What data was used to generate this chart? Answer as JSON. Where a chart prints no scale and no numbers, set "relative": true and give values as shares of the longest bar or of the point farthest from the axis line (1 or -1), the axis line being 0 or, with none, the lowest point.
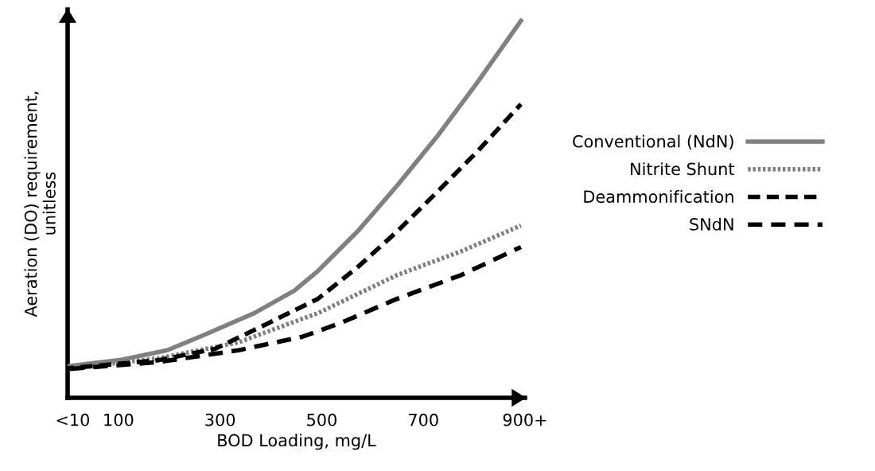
{
  "chart_data": {
    "type": "line",
    "xlabel": "BOD Loading, mg/L",
    "ylabel": "Aeration (DO) requirement,\nunitless",
    "relative": true,
    "xlim": [
      0,
      900
    ],
    "xticks": [
      {
        "value": 10,
        "label": "<10"
      },
      100,
      300,
      500,
      700,
      {
        "value": 900,
        "label": "900+"
      }
    ],
    "legend": "right",
    "grid": false,
    "series": [
      {
        "name": "Conventional (NdN)",
        "color": "#808080",
        "line_style": "solid",
        "x": [
          0,
          102,
          196,
          274,
          368,
          446,
          493,
          571,
          649,
          728,
          806,
          892
        ],
        "values": [
          0.084,
          0.1,
          0.126,
          0.17,
          0.225,
          0.284,
          0.337,
          0.442,
          0.564,
          0.695,
          0.836,
          1
        ]
      },
      {
        "name": "Nitrite Shunt",
        "color": "#808080",
        "line_style": "dotted",
        "x": [
          0,
          180,
          336,
          493,
          649,
          775,
          892
        ],
        "values": [
          0.078,
          0.105,
          0.147,
          0.225,
          0.326,
          0.389,
          0.457
        ]
      },
      {
        "name": "Deammonification",
        "color": "#000000",
        "line_style": "dashed",
        "x": [
          0,
          180,
          290,
          383,
          493,
          571,
          649,
          728,
          806,
          892
        ],
        "values": [
          0.078,
          0.1,
          0.13,
          0.19,
          0.263,
          0.347,
          0.442,
          0.547,
          0.653,
          0.779
        ]
      },
      {
        "name": "SNdN",
        "color": "#000000",
        "line_style": "dashed",
        "x": [
          0,
          180,
          336,
          462,
          540,
          649,
          775,
          892
        ],
        "values": [
          0.076,
          0.095,
          0.126,
          0.162,
          0.2,
          0.263,
          0.326,
          0.4
        ]
      }
    ]
  }
}
